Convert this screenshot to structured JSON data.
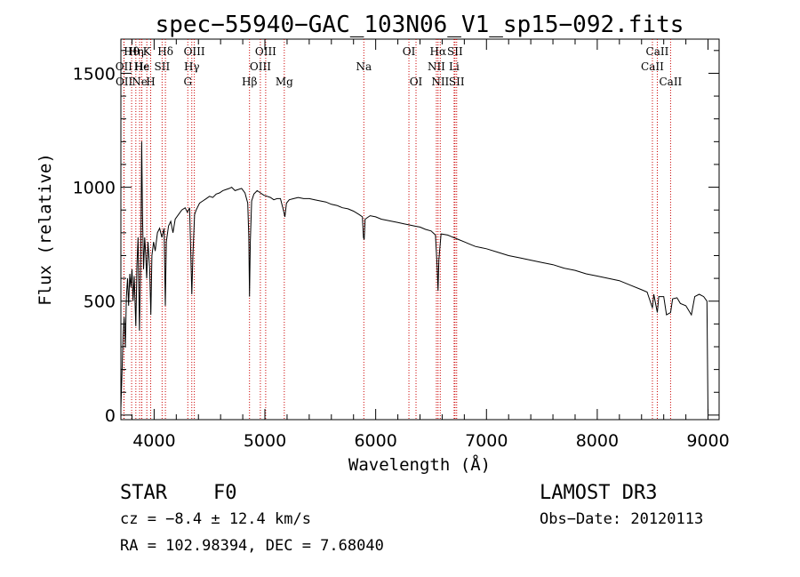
{
  "chart_data": {
    "type": "line",
    "title": "spec−55940−GAC_103N06_V1_sp15−092.fits",
    "xlabel": "Wavelength (Å)",
    "ylabel": "Flux (relative)",
    "xlim": [
      3700,
      9100
    ],
    "ylim": [
      -20,
      1650
    ],
    "xticks": [
      4000,
      5000,
      6000,
      7000,
      8000,
      9000
    ],
    "xtick_labels": [
      "4000",
      "5000",
      "6000",
      "7000",
      "8000",
      "9000"
    ],
    "yticks": [
      0,
      500,
      1000,
      1500
    ],
    "ytick_labels": [
      "0",
      "500",
      "1000",
      "1500"
    ],
    "grid": false,
    "line_color": "#000000",
    "marker_color": "#cc0000",
    "series": [
      {
        "name": "spectrum",
        "points": [
          [
            3700,
            30
          ],
          [
            3710,
            180
          ],
          [
            3720,
            350
          ],
          [
            3730,
            430
          ],
          [
            3740,
            300
          ],
          [
            3750,
            520
          ],
          [
            3760,
            600
          ],
          [
            3770,
            480
          ],
          [
            3780,
            620
          ],
          [
            3790,
            560
          ],
          [
            3800,
            640
          ],
          [
            3810,
            500
          ],
          [
            3820,
            610
          ],
          [
            3835,
            390
          ],
          [
            3845,
            660
          ],
          [
            3855,
            780
          ],
          [
            3868,
            370
          ],
          [
            3880,
            700
          ],
          [
            3888,
            1200
          ],
          [
            3895,
            880
          ],
          [
            3905,
            640
          ],
          [
            3915,
            780
          ],
          [
            3925,
            700
          ],
          [
            3933,
            600
          ],
          [
            3945,
            760
          ],
          [
            3960,
            640
          ],
          [
            3970,
            440
          ],
          [
            3980,
            700
          ],
          [
            3995,
            760
          ],
          [
            4010,
            720
          ],
          [
            4030,
            800
          ],
          [
            4050,
            820
          ],
          [
            4070,
            780
          ],
          [
            4090,
            820
          ],
          [
            4101,
            480
          ],
          [
            4110,
            760
          ],
          [
            4130,
            830
          ],
          [
            4150,
            850
          ],
          [
            4170,
            800
          ],
          [
            4190,
            860
          ],
          [
            4220,
            880
          ],
          [
            4250,
            900
          ],
          [
            4280,
            910
          ],
          [
            4300,
            890
          ],
          [
            4320,
            910
          ],
          [
            4340,
            530
          ],
          [
            4350,
            700
          ],
          [
            4365,
            880
          ],
          [
            4380,
            900
          ],
          [
            4410,
            930
          ],
          [
            4440,
            940
          ],
          [
            4470,
            950
          ],
          [
            4500,
            960
          ],
          [
            4530,
            955
          ],
          [
            4560,
            970
          ],
          [
            4590,
            975
          ],
          [
            4620,
            985
          ],
          [
            4650,
            990
          ],
          [
            4680,
            995
          ],
          [
            4700,
            1000
          ],
          [
            4730,
            985
          ],
          [
            4760,
            990
          ],
          [
            4790,
            995
          ],
          [
            4820,
            975
          ],
          [
            4845,
            930
          ],
          [
            4855,
            780
          ],
          [
            4861,
            520
          ],
          [
            4868,
            760
          ],
          [
            4880,
            940
          ],
          [
            4900,
            970
          ],
          [
            4930,
            985
          ],
          [
            4960,
            975
          ],
          [
            4990,
            965
          ],
          [
            5020,
            960
          ],
          [
            5050,
            955
          ],
          [
            5080,
            945
          ],
          [
            5110,
            950
          ],
          [
            5140,
            950
          ],
          [
            5167,
            900
          ],
          [
            5180,
            870
          ],
          [
            5195,
            930
          ],
          [
            5220,
            945
          ],
          [
            5260,
            950
          ],
          [
            5300,
            955
          ],
          [
            5350,
            950
          ],
          [
            5400,
            950
          ],
          [
            5450,
            945
          ],
          [
            5500,
            940
          ],
          [
            5550,
            935
          ],
          [
            5600,
            925
          ],
          [
            5650,
            920
          ],
          [
            5700,
            910
          ],
          [
            5750,
            905
          ],
          [
            5800,
            895
          ],
          [
            5850,
            880
          ],
          [
            5880,
            870
          ],
          [
            5890,
            780
          ],
          [
            5896,
            770
          ],
          [
            5905,
            860
          ],
          [
            5950,
            875
          ],
          [
            6000,
            870
          ],
          [
            6050,
            860
          ],
          [
            6100,
            855
          ],
          [
            6150,
            850
          ],
          [
            6200,
            845
          ],
          [
            6250,
            840
          ],
          [
            6300,
            835
          ],
          [
            6350,
            830
          ],
          [
            6400,
            825
          ],
          [
            6450,
            815
          ],
          [
            6500,
            808
          ],
          [
            6540,
            790
          ],
          [
            6555,
            650
          ],
          [
            6563,
            545
          ],
          [
            6570,
            680
          ],
          [
            6590,
            795
          ],
          [
            6650,
            790
          ],
          [
            6700,
            780
          ],
          [
            6750,
            770
          ],
          [
            6800,
            760
          ],
          [
            6850,
            750
          ],
          [
            6900,
            740
          ],
          [
            6950,
            735
          ],
          [
            7000,
            730
          ],
          [
            7100,
            715
          ],
          [
            7200,
            700
          ],
          [
            7300,
            690
          ],
          [
            7400,
            680
          ],
          [
            7500,
            670
          ],
          [
            7600,
            660
          ],
          [
            7700,
            645
          ],
          [
            7800,
            635
          ],
          [
            7900,
            620
          ],
          [
            8000,
            610
          ],
          [
            8100,
            600
          ],
          [
            8200,
            590
          ],
          [
            8300,
            570
          ],
          [
            8400,
            550
          ],
          [
            8450,
            540
          ],
          [
            8498,
            470
          ],
          [
            8510,
            530
          ],
          [
            8542,
            450
          ],
          [
            8555,
            520
          ],
          [
            8600,
            520
          ],
          [
            8625,
            440
          ],
          [
            8662,
            450
          ],
          [
            8680,
            510
          ],
          [
            8720,
            515
          ],
          [
            8750,
            490
          ],
          [
            8800,
            480
          ],
          [
            8850,
            440
          ],
          [
            8880,
            520
          ],
          [
            8920,
            530
          ],
          [
            8960,
            520
          ],
          [
            8990,
            500
          ],
          [
            9000,
            10
          ]
        ]
      }
    ],
    "lines": [
      {
        "label": "Hθ",
        "wavelength": 3797,
        "row": 1
      },
      {
        "label": "OII",
        "wavelength": 3727,
        "row": 2
      },
      {
        "label": "OII",
        "wavelength": 3729,
        "row": 3
      },
      {
        "label": "Hη",
        "wavelength": 3835,
        "row": 1
      },
      {
        "label": "Hε",
        "wavelength": 3889,
        "row": 2
      },
      {
        "label": "Ne",
        "wavelength": 3869,
        "row": 3
      },
      {
        "label": "K",
        "wavelength": 3934,
        "row": 1
      },
      {
        "label": "He",
        "wavelength": 3888,
        "row": 2
      },
      {
        "label": "H",
        "wavelength": 3969,
        "row": 3
      },
      {
        "label": "Hδ",
        "wavelength": 4102,
        "row": 1
      },
      {
        "label": "SII",
        "wavelength": 4072,
        "row": 2
      },
      {
        "label": "OIII",
        "wavelength": 4363,
        "row": 1
      },
      {
        "label": "Hγ",
        "wavelength": 4340,
        "row": 2
      },
      {
        "label": "G",
        "wavelength": 4304,
        "row": 3
      },
      {
        "label": "OIII",
        "wavelength": 5007,
        "row": 1
      },
      {
        "label": "OIII",
        "wavelength": 4959,
        "row": 2
      },
      {
        "label": "Hβ",
        "wavelength": 4861,
        "row": 3
      },
      {
        "label": "Mg",
        "wavelength": 5175,
        "row": 3
      },
      {
        "label": "Na",
        "wavelength": 5893,
        "row": 2
      },
      {
        "label": "OI",
        "wavelength": 6300,
        "row": 1
      },
      {
        "label": "OI",
        "wavelength": 6364,
        "row": 3
      },
      {
        "label": "Hα",
        "wavelength": 6563,
        "row": 1
      },
      {
        "label": "NII",
        "wavelength": 6548,
        "row": 2
      },
      {
        "label": "NII",
        "wavelength": 6583,
        "row": 3
      },
      {
        "label": "SII",
        "wavelength": 6716,
        "row": 1
      },
      {
        "label": "Li",
        "wavelength": 6708,
        "row": 2
      },
      {
        "label": "SII",
        "wavelength": 6731,
        "row": 3
      },
      {
        "label": "CaII",
        "wavelength": 8542,
        "row": 1
      },
      {
        "label": "CaII",
        "wavelength": 8498,
        "row": 2
      },
      {
        "label": "CaII",
        "wavelength": 8662,
        "row": 3
      }
    ]
  },
  "info": {
    "object_class": "STAR",
    "subclass": "F0",
    "cz": "cz = −8.4 ± 12.4 km/s",
    "coords": "RA = 102.98394, DEC =    7.68040",
    "survey": "LAMOST DR3",
    "obs_date": "Obs−Date: 20120113"
  }
}
